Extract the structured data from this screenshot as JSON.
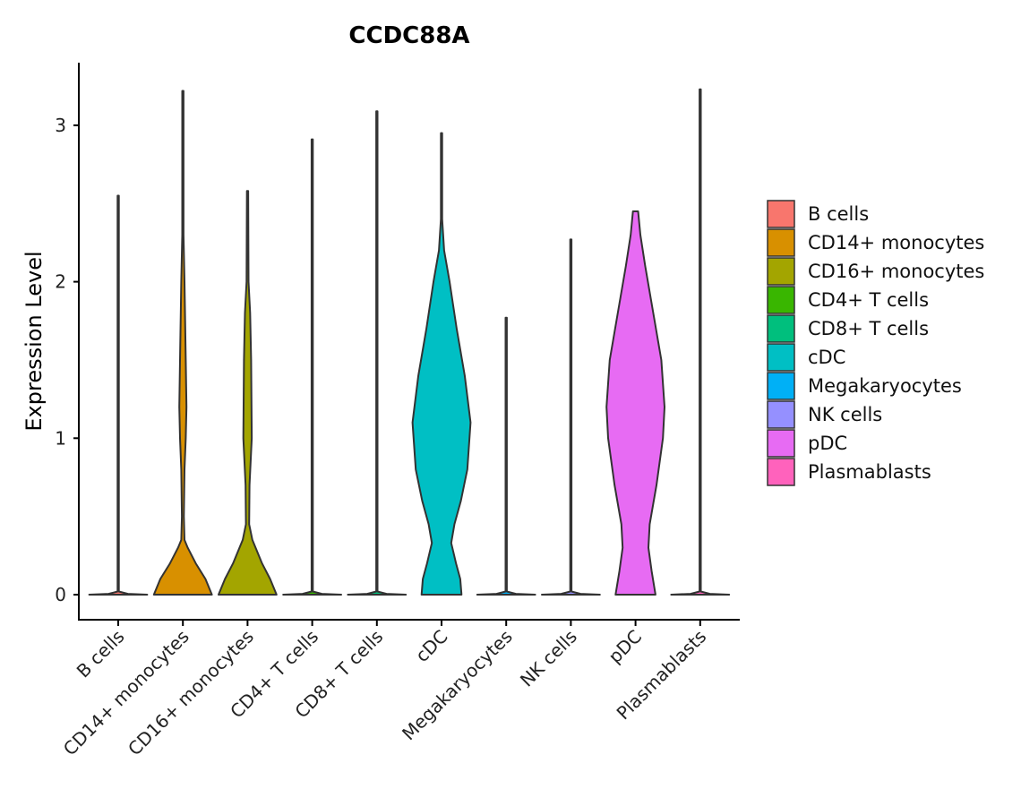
{
  "chart_data": {
    "type": "violin",
    "title": "CCDC88A",
    "xlabel": "",
    "ylabel": "Expression Level",
    "ylim": [
      -0.16,
      3.4
    ],
    "yticks": [
      0,
      1,
      2,
      3
    ],
    "grid": false,
    "legend_position": "right",
    "categories": [
      "B cells",
      "CD14+ monocytes",
      "CD16+ monocytes",
      "CD4+ T cells",
      "CD8+ T cells",
      "cDC",
      "Megakaryocytes",
      "NK cells",
      "pDC",
      "Plasmablasts"
    ],
    "colors": [
      "#F8766D",
      "#D89000",
      "#A3A500",
      "#39B600",
      "#00BF7D",
      "#00BFC4",
      "#00B0F6",
      "#9590FF",
      "#E76BF3",
      "#FF62BC"
    ],
    "max_values": [
      2.55,
      3.22,
      2.58,
      2.91,
      3.09,
      2.95,
      1.77,
      2.27,
      2.45,
      3.23
    ],
    "density_profiles": [
      [
        [
          0,
          0.9
        ],
        [
          0.005,
          0.3
        ],
        [
          0.02,
          0.02
        ],
        [
          2.55,
          0.02
        ]
      ],
      [
        [
          0,
          0.9
        ],
        [
          0.1,
          0.7
        ],
        [
          0.2,
          0.4
        ],
        [
          0.3,
          0.15
        ],
        [
          0.35,
          0.05
        ],
        [
          0.5,
          0.03
        ],
        [
          0.8,
          0.05
        ],
        [
          1.0,
          0.09
        ],
        [
          1.2,
          0.11
        ],
        [
          1.5,
          0.09
        ],
        [
          2.0,
          0.05
        ],
        [
          2.3,
          0.02
        ],
        [
          3.22,
          0.02
        ]
      ],
      [
        [
          0,
          0.9
        ],
        [
          0.1,
          0.7
        ],
        [
          0.2,
          0.45
        ],
        [
          0.35,
          0.15
        ],
        [
          0.45,
          0.05
        ],
        [
          0.7,
          0.06
        ],
        [
          1.0,
          0.13
        ],
        [
          1.5,
          0.11
        ],
        [
          1.8,
          0.08
        ],
        [
          2.0,
          0.03
        ],
        [
          2.58,
          0.02
        ]
      ],
      [
        [
          0,
          0.9
        ],
        [
          0.005,
          0.3
        ],
        [
          0.02,
          0.02
        ],
        [
          2.91,
          0.02
        ]
      ],
      [
        [
          0,
          0.9
        ],
        [
          0.005,
          0.3
        ],
        [
          0.02,
          0.02
        ],
        [
          3.09,
          0.02
        ]
      ],
      [
        [
          0,
          0.62
        ],
        [
          0.1,
          0.58
        ],
        [
          0.2,
          0.45
        ],
        [
          0.33,
          0.3
        ],
        [
          0.45,
          0.4
        ],
        [
          0.6,
          0.6
        ],
        [
          0.8,
          0.8
        ],
        [
          1.1,
          0.9
        ],
        [
          1.4,
          0.72
        ],
        [
          1.7,
          0.47
        ],
        [
          2.0,
          0.25
        ],
        [
          2.2,
          0.08
        ],
        [
          2.4,
          0.02
        ],
        [
          2.95,
          0.02
        ]
      ],
      [
        [
          0,
          0.9
        ],
        [
          0.005,
          0.3
        ],
        [
          0.02,
          0.02
        ],
        [
          1.77,
          0.02
        ]
      ],
      [
        [
          0,
          0.9
        ],
        [
          0.005,
          0.3
        ],
        [
          0.02,
          0.02
        ],
        [
          2.27,
          0.02
        ]
      ],
      [
        [
          0,
          0.62
        ],
        [
          0.15,
          0.5
        ],
        [
          0.3,
          0.4
        ],
        [
          0.45,
          0.44
        ],
        [
          0.7,
          0.65
        ],
        [
          1.0,
          0.85
        ],
        [
          1.2,
          0.9
        ],
        [
          1.5,
          0.8
        ],
        [
          1.8,
          0.55
        ],
        [
          2.1,
          0.3
        ],
        [
          2.3,
          0.15
        ],
        [
          2.45,
          0.08
        ]
      ],
      [
        [
          0,
          0.9
        ],
        [
          0.005,
          0.3
        ],
        [
          0.02,
          0.02
        ],
        [
          3.23,
          0.02
        ]
      ]
    ]
  }
}
